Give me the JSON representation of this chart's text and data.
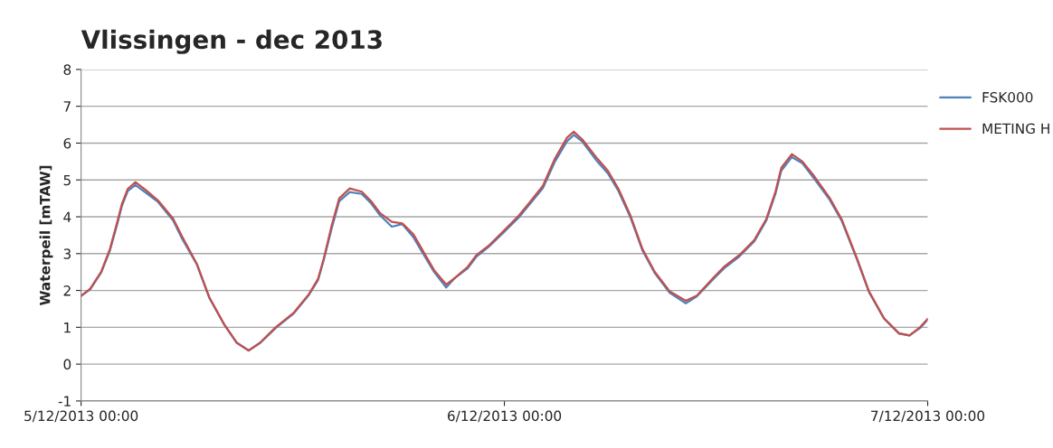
{
  "chart_data": {
    "type": "line",
    "title": "Vlissingen - dec 2013",
    "ylabel": "Waterpeil [mTAW]",
    "x": [
      "2013-12-05T00:00",
      "2013-12-05T00:31",
      "2013-12-05T01:08",
      "2013-12-05T01:38",
      "2013-12-05T02:03",
      "2013-12-05T02:19",
      "2013-12-05T02:39",
      "2013-12-05T03:05",
      "2013-12-05T03:41",
      "2013-12-05T04:22",
      "2013-12-05T05:13",
      "2013-12-05T05:44",
      "2013-12-05T06:34",
      "2013-12-05T07:16",
      "2013-12-05T08:07",
      "2013-12-05T08:49",
      "2013-12-05T09:30",
      "2013-12-05T10:10",
      "2013-12-05T11:02",
      "2013-12-05T12:04",
      "2013-12-05T12:55",
      "2013-12-05T13:26",
      "2013-12-05T13:46",
      "2013-12-05T14:13",
      "2013-12-05T14:38",
      "2013-12-05T15:14",
      "2013-12-05T15:55",
      "2013-12-05T16:26",
      "2013-12-05T16:56",
      "2013-12-05T17:37",
      "2013-12-05T18:13",
      "2013-12-05T18:50",
      "2013-12-05T19:31",
      "2013-12-05T20:01",
      "2013-12-05T20:42",
      "2013-12-05T21:13",
      "2013-12-05T21:55",
      "2013-12-05T22:25",
      "2013-12-05T23:06",
      "2013-12-05T23:58",
      "2013-12-06T00:49",
      "2013-12-06T01:30",
      "2013-12-06T02:11",
      "2013-12-06T02:52",
      "2013-12-06T03:33",
      "2013-12-06T03:56",
      "2013-12-06T04:24",
      "2013-12-06T05:16",
      "2013-12-06T05:52",
      "2013-12-06T06:28",
      "2013-12-06T07:09",
      "2013-12-06T07:50",
      "2013-12-06T08:31",
      "2013-12-06T09:22",
      "2013-12-06T10:17",
      "2013-12-06T10:55",
      "2013-12-06T11:56",
      "2013-12-06T12:27",
      "2013-12-06T13:19",
      "2013-12-06T14:10",
      "2013-12-06T14:51",
      "2013-12-06T15:22",
      "2013-12-06T15:42",
      "2013-12-06T16:18",
      "2013-12-06T16:54",
      "2013-12-06T17:35",
      "2013-12-06T18:26",
      "2013-12-06T19:07",
      "2013-12-06T19:59",
      "2013-12-06T20:40",
      "2013-12-06T21:31",
      "2013-12-06T22:22",
      "2013-12-06T22:58",
      "2013-12-06T23:34",
      "2013-12-07T00:00"
    ],
    "series": [
      {
        "name": "FSK000",
        "color": "#4f81bd",
        "values": [
          1.85,
          2.03,
          2.48,
          3.08,
          3.8,
          4.3,
          4.7,
          4.86,
          4.65,
          4.4,
          3.9,
          3.4,
          2.7,
          1.8,
          1.07,
          0.58,
          0.37,
          0.58,
          0.98,
          1.38,
          1.88,
          2.28,
          2.84,
          3.7,
          4.42,
          4.67,
          4.62,
          4.37,
          4.05,
          3.73,
          3.8,
          3.45,
          2.9,
          2.5,
          2.08,
          2.35,
          2.6,
          2.92,
          3.18,
          3.58,
          3.98,
          4.38,
          4.78,
          5.5,
          6.05,
          6.22,
          6.05,
          5.5,
          5.18,
          4.7,
          3.98,
          3.08,
          2.48,
          1.94,
          1.65,
          1.84,
          2.35,
          2.6,
          2.92,
          3.33,
          3.9,
          4.62,
          5.25,
          5.62,
          5.45,
          5.02,
          4.47,
          3.9,
          2.85,
          1.96,
          1.24,
          0.83,
          0.78,
          0.98,
          1.21
        ]
      },
      {
        "name": "METING H",
        "color": "#c0504d",
        "values": [
          1.85,
          2.05,
          2.5,
          3.12,
          3.86,
          4.35,
          4.76,
          4.94,
          4.72,
          4.44,
          3.95,
          3.46,
          2.72,
          1.82,
          1.08,
          0.59,
          0.37,
          0.59,
          1.0,
          1.4,
          1.9,
          2.31,
          2.88,
          3.78,
          4.5,
          4.77,
          4.68,
          4.43,
          4.11,
          3.86,
          3.82,
          3.53,
          2.96,
          2.55,
          2.16,
          2.35,
          2.64,
          2.96,
          3.21,
          3.62,
          4.03,
          4.43,
          4.84,
          5.58,
          6.15,
          6.31,
          6.11,
          5.58,
          5.25,
          4.76,
          4.03,
          3.12,
          2.51,
          1.98,
          1.72,
          1.86,
          2.39,
          2.64,
          2.96,
          3.37,
          3.94,
          4.68,
          5.33,
          5.7,
          5.5,
          5.09,
          4.52,
          3.94,
          2.88,
          1.98,
          1.25,
          0.84,
          0.78,
          1.0,
          1.23
        ]
      }
    ],
    "xlim": [
      "2013-12-05T00:00",
      "2013-12-07T00:00"
    ],
    "xticks": [
      {
        "value": "2013-12-05T00:00",
        "label": "5/12/2013 00:00"
      },
      {
        "value": "2013-12-06T00:00",
        "label": "6/12/2013 00:00"
      },
      {
        "value": "2013-12-07T00:00",
        "label": "7/12/2013 00:00"
      }
    ],
    "ylim": [
      -1,
      8
    ],
    "yticks": [
      -1,
      0,
      1,
      2,
      3,
      4,
      5,
      6,
      7,
      8
    ],
    "grid": "y",
    "legend": "top right",
    "marker": "none",
    "line_style": "solid"
  }
}
